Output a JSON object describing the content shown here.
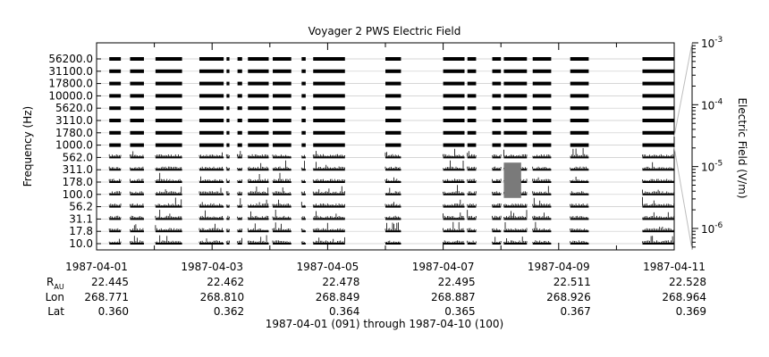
{
  "chart_data": {
    "type": "heatmap",
    "title": "Voyager 2 PWS Electric Field",
    "ylabel": "Frequency (Hz)",
    "colorbar_label": "Electric Field (V/m)",
    "colorbar_scale": "log",
    "colorbar_range": [
      4.5e-07,
      0.001
    ],
    "colorbar_ticks": [
      {
        "value": 0.001,
        "base": "10",
        "exp": "-3"
      },
      {
        "value": 0.0001,
        "base": "10",
        "exp": "-4"
      },
      {
        "value": 1e-05,
        "base": "10",
        "exp": "-5"
      },
      {
        "value": 1e-06,
        "base": "10",
        "exp": "-6"
      }
    ],
    "channels": [
      "56200.0",
      "31100.0",
      "17800.0",
      "10000.0",
      "5620.0",
      "3110.0",
      "1780.0",
      "1000.0",
      "562.0",
      "311.0",
      "178.0",
      "100.0",
      "56.2",
      "31.1",
      "17.8",
      "10.0"
    ],
    "x_ticks": [
      "1987-04-01",
      "1987-04-03",
      "1987-04-05",
      "1987-04-07",
      "1987-04-09",
      "1987-04-11"
    ],
    "x_range_days": [
      0,
      10
    ],
    "data_segments_days": [
      [
        0.22,
        0.42
      ],
      [
        0.58,
        0.82
      ],
      [
        1.02,
        1.48
      ],
      [
        1.78,
        2.2
      ],
      [
        2.25,
        2.3
      ],
      [
        2.44,
        2.52
      ],
      [
        2.62,
        2.98
      ],
      [
        3.05,
        3.37
      ],
      [
        3.55,
        3.62
      ],
      [
        3.75,
        4.3
      ],
      [
        5.0,
        5.27
      ],
      [
        6.0,
        6.37
      ],
      [
        6.42,
        6.57
      ],
      [
        6.85,
        7.0
      ],
      [
        7.05,
        7.45
      ],
      [
        7.55,
        7.87
      ],
      [
        8.2,
        8.52
      ],
      [
        9.45,
        10.0
      ]
    ],
    "enhanced_activity": {
      "channels": [
        "311.0",
        "178.0",
        "100.0"
      ],
      "days": [
        7.05,
        7.35
      ],
      "color": "#7a7a7a"
    },
    "ephemeris_labels": [
      "R_AU",
      "Lon",
      "Lat"
    ],
    "ephemeris": [
      {
        "R_AU": "22.445",
        "Lon": "268.771",
        "Lat": "0.360"
      },
      {
        "R_AU": "22.462",
        "Lon": "268.810",
        "Lat": "0.362"
      },
      {
        "R_AU": "22.478",
        "Lon": "268.849",
        "Lat": "0.364"
      },
      {
        "R_AU": "22.495",
        "Lon": "268.887",
        "Lat": "0.365"
      },
      {
        "R_AU": "22.511",
        "Lon": "268.926",
        "Lat": "0.367"
      },
      {
        "R_AU": "22.528",
        "Lon": "268.964",
        "Lat": "0.369"
      }
    ],
    "footer": "1987-04-01 (091) through 1987-04-10 (100)",
    "grid": false,
    "legend": "none"
  }
}
